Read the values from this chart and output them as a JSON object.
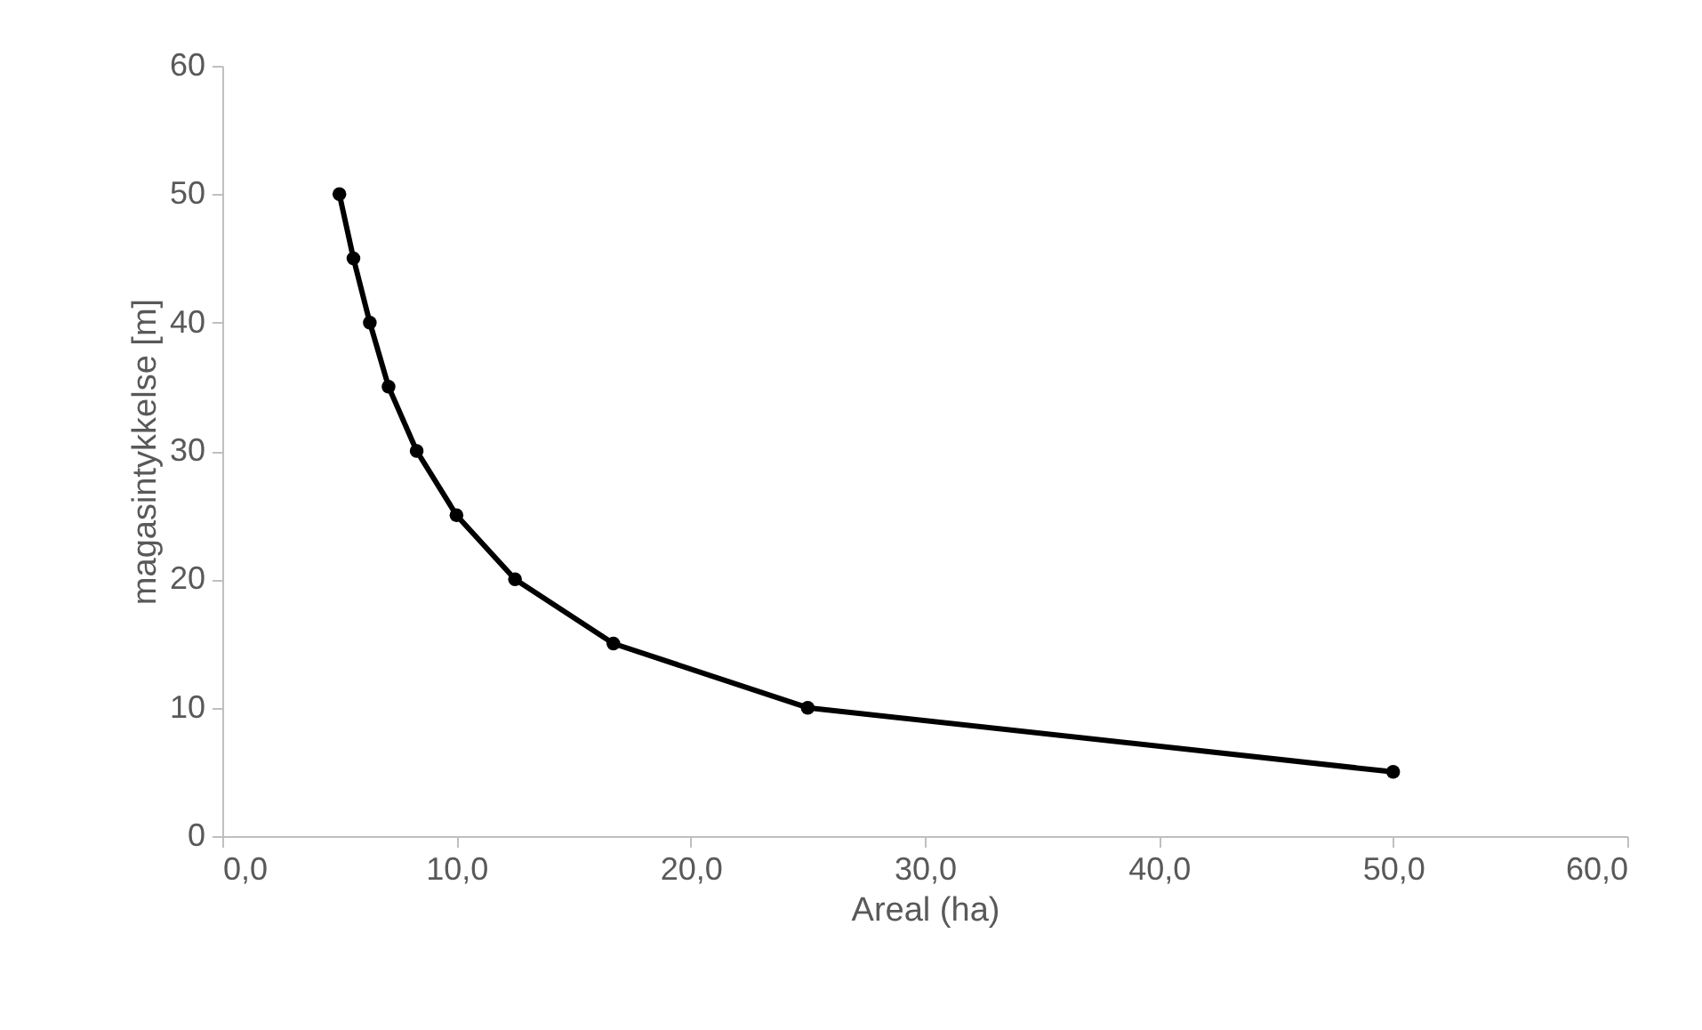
{
  "chart_data": {
    "type": "line",
    "xlabel": "Areal (ha)",
    "ylabel": "magasintykkelse [m]",
    "x": [
      5.0,
      5.6,
      6.3,
      7.1,
      8.3,
      10.0,
      12.5,
      16.7,
      25.0,
      50.0
    ],
    "series": [
      {
        "color": "#000000",
        "values": [
          50,
          45,
          40,
          35,
          30,
          25,
          20,
          15,
          10,
          5
        ]
      }
    ],
    "xlim": [
      0,
      60
    ],
    "xticks": [
      {
        "value": 0,
        "label": "0,0"
      },
      {
        "value": 10,
        "label": "10,0"
      },
      {
        "value": 20,
        "label": "20,0"
      },
      {
        "value": 30,
        "label": "30,0"
      },
      {
        "value": 40,
        "label": "40,0"
      },
      {
        "value": 50,
        "label": "50,0"
      },
      {
        "value": 60,
        "label": "60,0"
      }
    ],
    "ylim": [
      0,
      60
    ],
    "yticks": [
      0,
      10,
      20,
      30,
      40,
      50,
      60
    ],
    "grid": false,
    "marker": "circle",
    "line_style": "solid"
  }
}
